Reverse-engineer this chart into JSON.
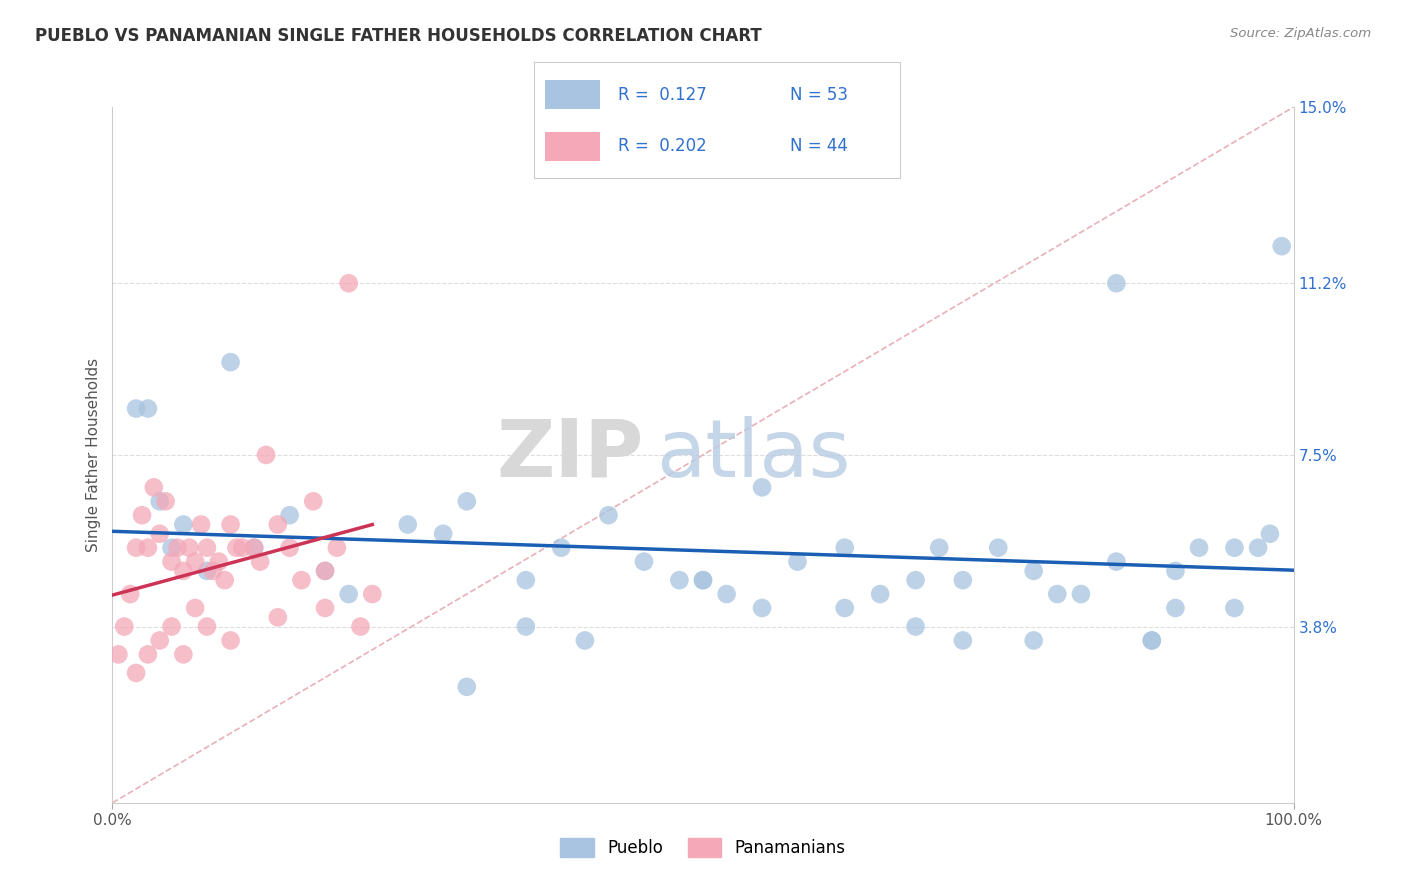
{
  "title": "PUEBLO VS PANAMANIAN SINGLE FATHER HOUSEHOLDS CORRELATION CHART",
  "source_text": "Source: ZipAtlas.com",
  "ylabel": "Single Father Households",
  "xlim": [
    0,
    100
  ],
  "ylim": [
    0,
    15
  ],
  "background_color": "#ffffff",
  "grid_color": "#dddddd",
  "blue_color": "#a8c4e0",
  "pink_color": "#f4a8b8",
  "trendline_blue_color": "#1a5fb4",
  "trendline_pink_color": "#cc3355",
  "diag_color": "#e8b0b8",
  "text_blue_color": "#3070d0",
  "legend_blue_label": "Pueblo",
  "legend_pink_label": "Panamanians",
  "pueblo_x": [
    2,
    3,
    4,
    5,
    6,
    8,
    10,
    12,
    15,
    18,
    20,
    25,
    28,
    30,
    35,
    38,
    42,
    45,
    48,
    50,
    52,
    55,
    58,
    62,
    65,
    68,
    70,
    72,
    75,
    78,
    80,
    82,
    85,
    88,
    90,
    92,
    95,
    97,
    98,
    99,
    85,
    72,
    30,
    40,
    55,
    68,
    78,
    90,
    95,
    88,
    62,
    50,
    35
  ],
  "pueblo_y": [
    8.5,
    8.5,
    6.5,
    5.5,
    6.0,
    5.0,
    9.5,
    5.5,
    6.2,
    5.0,
    4.5,
    6.0,
    5.8,
    6.5,
    4.8,
    5.5,
    6.2,
    5.2,
    4.8,
    4.8,
    4.5,
    4.2,
    5.2,
    5.5,
    4.5,
    4.8,
    5.5,
    4.8,
    5.5,
    5.0,
    4.5,
    4.5,
    5.2,
    3.5,
    5.0,
    5.5,
    5.5,
    5.5,
    5.8,
    12.0,
    11.2,
    3.5,
    2.5,
    3.5,
    6.8,
    3.8,
    3.5,
    4.2,
    4.2,
    3.5,
    4.2,
    4.8,
    3.8
  ],
  "panamanian_x": [
    0.5,
    1.0,
    1.5,
    2.0,
    2.5,
    3.0,
    3.5,
    4.0,
    4.5,
    5.0,
    5.5,
    6.0,
    6.5,
    7.0,
    7.5,
    8.0,
    8.5,
    9.0,
    9.5,
    10.0,
    10.5,
    11.0,
    12.0,
    12.5,
    13.0,
    14.0,
    15.0,
    16.0,
    17.0,
    18.0,
    19.0,
    20.0,
    21.0,
    22.0,
    3.0,
    5.0,
    7.0,
    10.0,
    14.0,
    18.0,
    2.0,
    4.0,
    6.0,
    8.0
  ],
  "panamanian_y": [
    3.2,
    3.8,
    4.5,
    5.5,
    6.2,
    5.5,
    6.8,
    5.8,
    6.5,
    5.2,
    5.5,
    5.0,
    5.5,
    5.2,
    6.0,
    5.5,
    5.0,
    5.2,
    4.8,
    6.0,
    5.5,
    5.5,
    5.5,
    5.2,
    7.5,
    6.0,
    5.5,
    4.8,
    6.5,
    5.0,
    5.5,
    11.2,
    3.8,
    4.5,
    3.2,
    3.8,
    4.2,
    3.5,
    4.0,
    4.2,
    2.8,
    3.5,
    3.2,
    3.8
  ]
}
